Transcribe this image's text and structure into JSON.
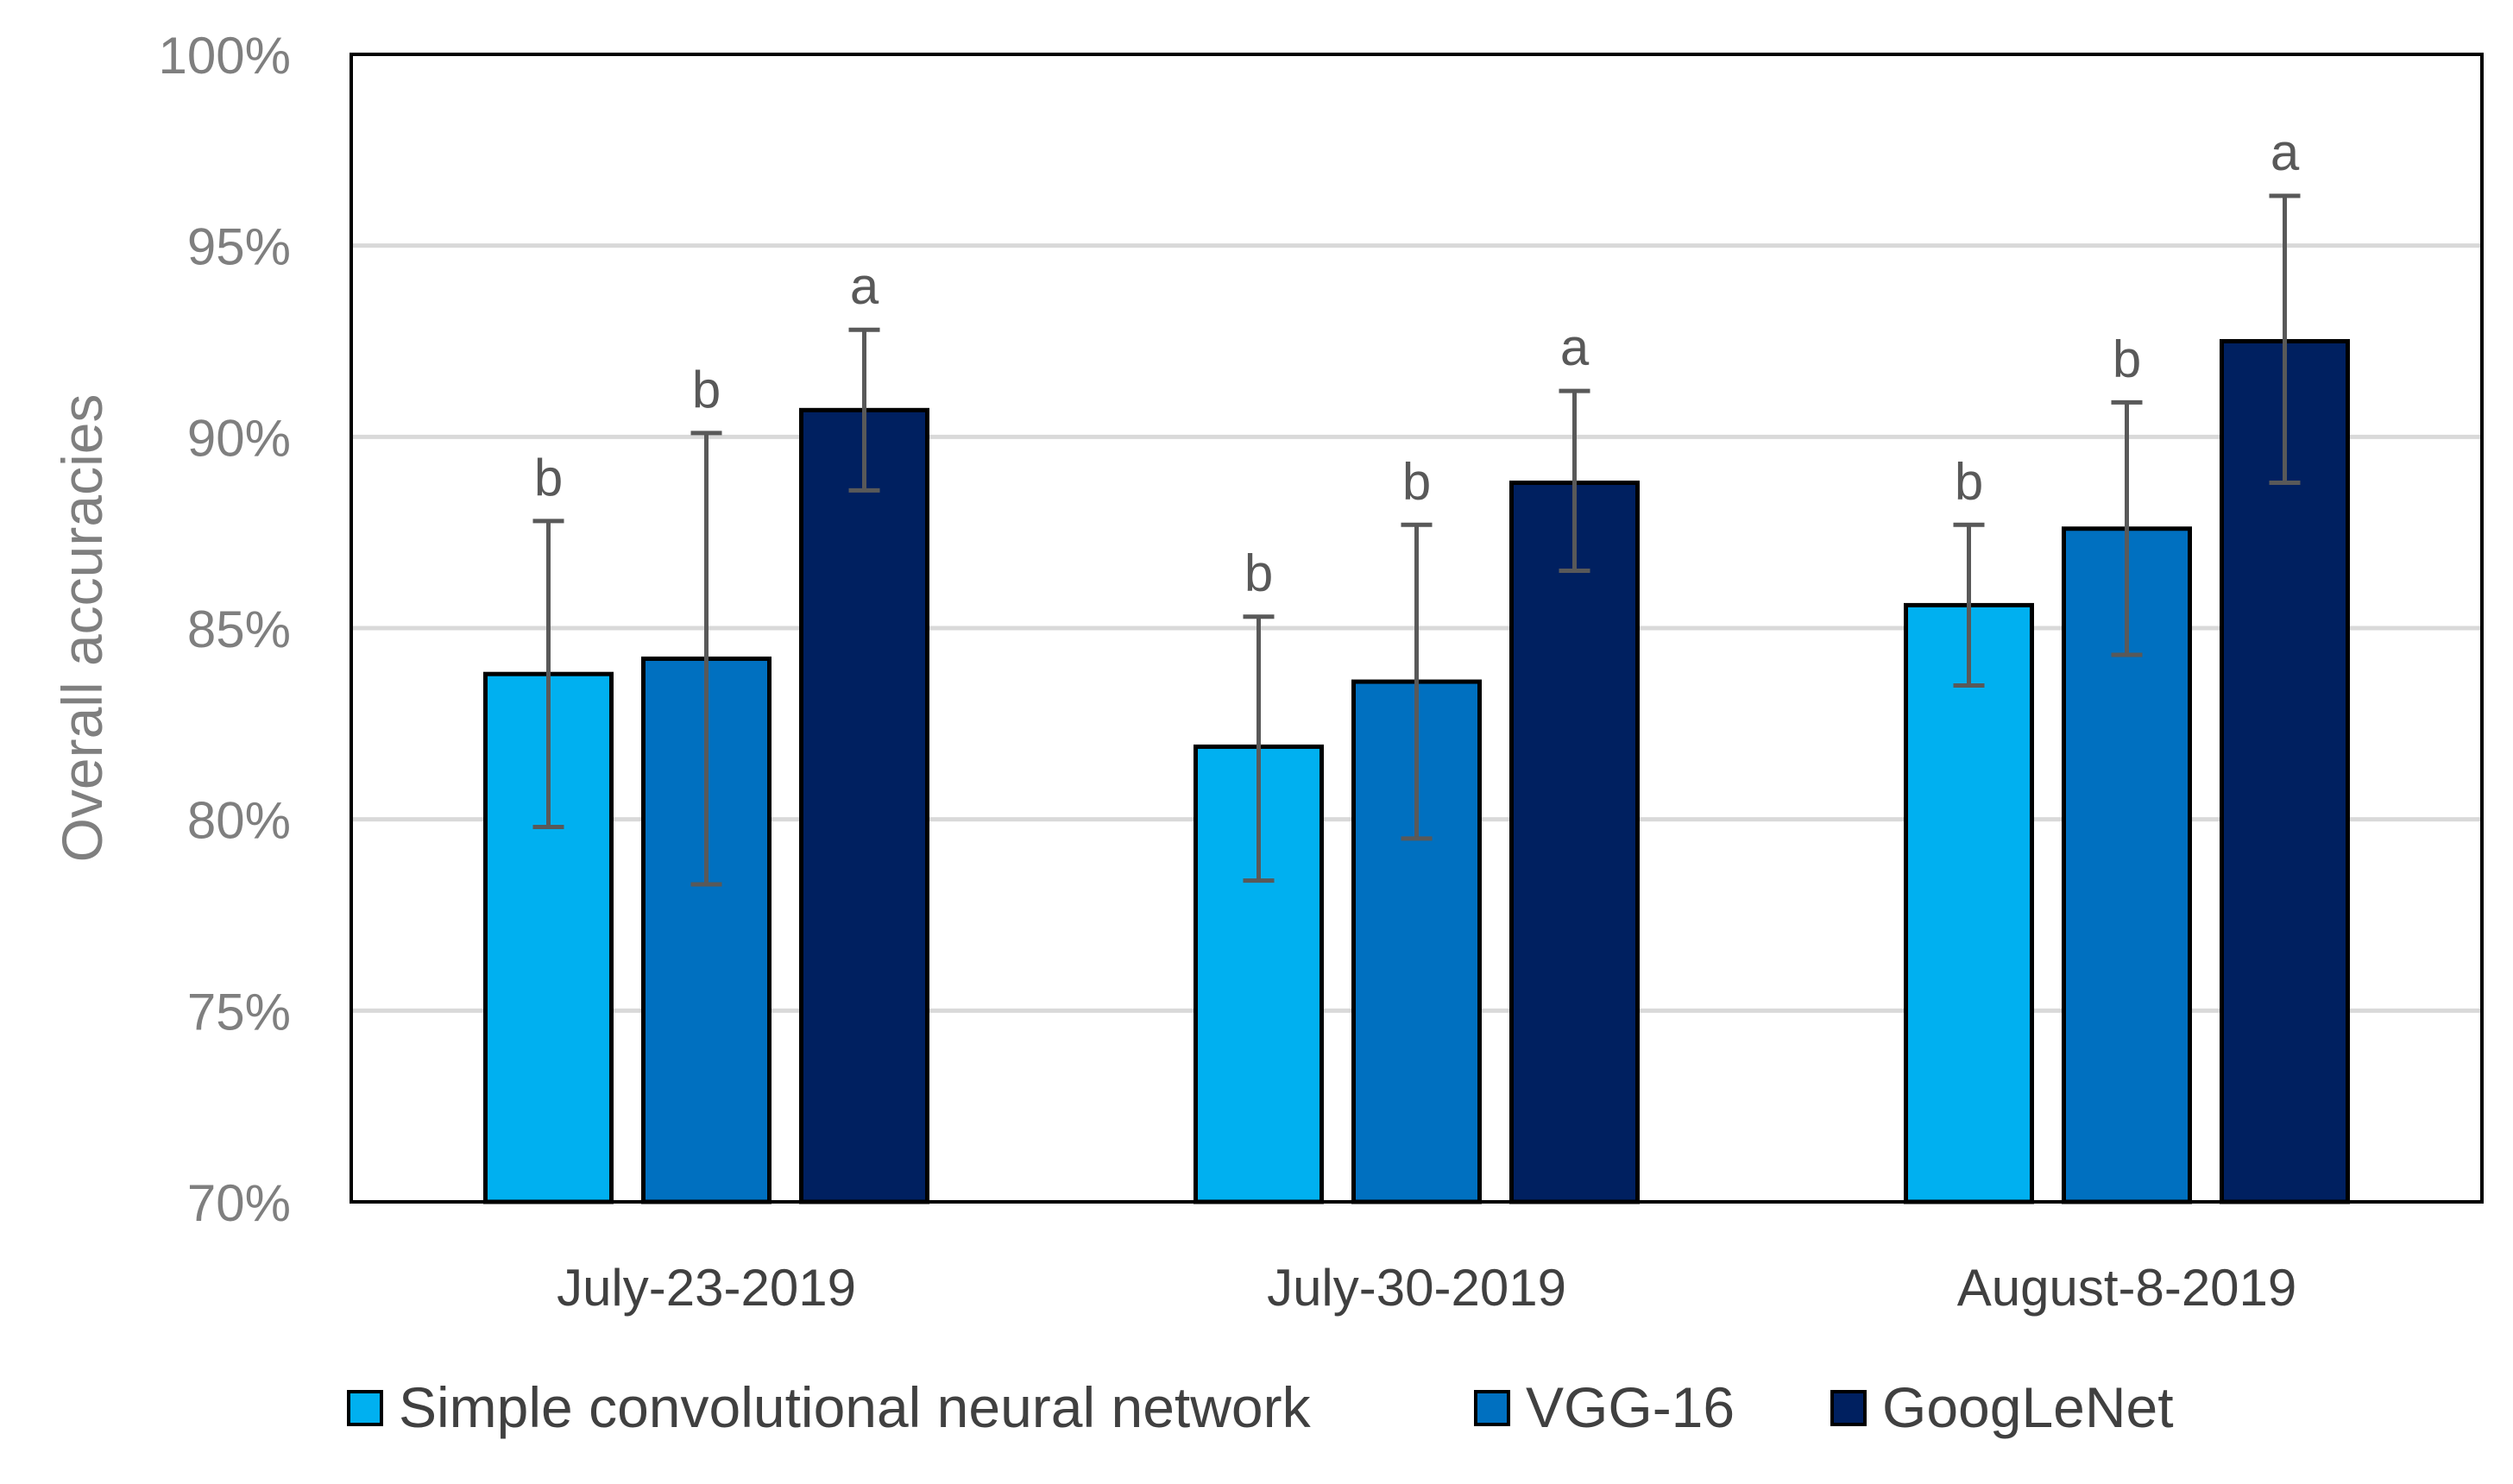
{
  "chart_data": {
    "type": "bar",
    "title": "",
    "xlabel": "",
    "ylabel": "Overall accuracies",
    "ylim": [
      70,
      100
    ],
    "yticks": [
      70,
      75,
      80,
      85,
      90,
      95,
      100
    ],
    "ytick_labels": [
      "70%",
      "75%",
      "80%",
      "85%",
      "90%",
      "95%",
      "100%"
    ],
    "grid": true,
    "legend_position": "bottom",
    "categories": [
      "July-23-2019",
      "July-30-2019",
      "August-8-2019"
    ],
    "series": [
      {
        "name": "Simple convolutional neural network",
        "color": "#00b0f0",
        "values": [
          83.8,
          81.9,
          85.6
        ],
        "err_low": [
          79.8,
          78.4,
          83.5
        ],
        "err_high": [
          87.8,
          85.3,
          87.7
        ],
        "labels": [
          "b",
          "b",
          "b"
        ]
      },
      {
        "name": "VGG-16",
        "color": "#0070c0",
        "values": [
          84.2,
          83.6,
          87.6
        ],
        "err_low": [
          78.3,
          79.5,
          84.3
        ],
        "err_high": [
          90.1,
          87.7,
          90.9
        ],
        "labels": [
          "b",
          "b",
          "b"
        ]
      },
      {
        "name": "GoogLeNet",
        "color": "#002060",
        "values": [
          90.7,
          88.8,
          92.5
        ],
        "err_low": [
          88.6,
          86.5,
          88.8
        ],
        "err_high": [
          92.8,
          91.2,
          96.3
        ],
        "labels": [
          "a",
          "a",
          "a"
        ]
      }
    ]
  }
}
